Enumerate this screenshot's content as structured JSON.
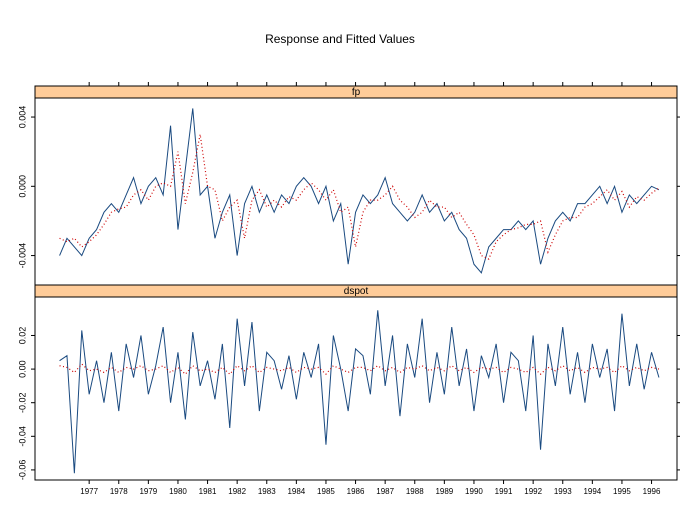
{
  "chart_data": {
    "type": "line",
    "title": "Response and Fitted Values",
    "x": [
      1976.5,
      1976.75,
      1977,
      1977.25,
      1977.5,
      1977.75,
      1978,
      1978.25,
      1978.5,
      1978.75,
      1979,
      1979.25,
      1979.5,
      1979.75,
      1980,
      1980.25,
      1980.5,
      1980.75,
      1981,
      1981.25,
      1981.5,
      1981.75,
      1982,
      1982.25,
      1982.5,
      1982.75,
      1983,
      1983.25,
      1983.5,
      1983.75,
      1984,
      1984.25,
      1984.5,
      1984.75,
      1985,
      1985.25,
      1985.5,
      1985.75,
      1986,
      1986.25,
      1986.5,
      1986.75,
      1987,
      1987.25,
      1987.5,
      1987.75,
      1988,
      1988.25,
      1988.5,
      1988.75,
      1989,
      1989.25,
      1989.5,
      1989.75,
      1990,
      1990.25,
      1990.5,
      1990.75,
      1991,
      1991.25,
      1991.5,
      1991.75,
      1992,
      1992.25,
      1992.5,
      1992.75,
      1993,
      1993.25,
      1993.5,
      1993.75,
      1994,
      1994.25,
      1994.5,
      1994.75,
      1995,
      1995.25,
      1995.5,
      1995.75,
      1996,
      1996.25,
      1996.5,
      1996.75
    ],
    "xlim": [
      1975.67,
      1997.36
    ],
    "xticks": [
      {
        "value": 1977.5,
        "label": "1977"
      },
      {
        "value": 1978.5,
        "label": "1978"
      },
      {
        "value": 1979.5,
        "label": "1979"
      },
      {
        "value": 1980.5,
        "label": "1980"
      },
      {
        "value": 1981.5,
        "label": "1981"
      },
      {
        "value": 1982.5,
        "label": "1982"
      },
      {
        "value": 1983.5,
        "label": "1983"
      },
      {
        "value": 1984.5,
        "label": "1984"
      },
      {
        "value": 1985.5,
        "label": "1985"
      },
      {
        "value": 1986.5,
        "label": "1986"
      },
      {
        "value": 1987.5,
        "label": "1987"
      },
      {
        "value": 1988.5,
        "label": "1988"
      },
      {
        "value": 1989.5,
        "label": "1989"
      },
      {
        "value": 1990.5,
        "label": "1990"
      },
      {
        "value": 1991.5,
        "label": "1991"
      },
      {
        "value": 1992.5,
        "label": "1992"
      },
      {
        "value": 1993.5,
        "label": "1993"
      },
      {
        "value": 1994.5,
        "label": "1994"
      },
      {
        "value": 1995.5,
        "label": "1995"
      },
      {
        "value": 1996.5,
        "label": "1996"
      }
    ],
    "panels": [
      {
        "strip": "fp",
        "ylim": [
          -0.0057,
          0.0051
        ],
        "yticks": [
          -0.004,
          {
            "value": 0,
            "label": "0.000"
          },
          0.004
        ],
        "series": [
          {
            "color": "#1a4a80",
            "style": "solid",
            "values": [
              -0.004,
              -0.003,
              -0.0035,
              -0.004,
              -0.003,
              -0.0025,
              -0.0015,
              -0.001,
              -0.0015,
              -0.0005,
              0.0005,
              -0.001,
              0.0,
              0.0005,
              -0.0005,
              0.0035,
              -0.0025,
              0.001,
              0.0045,
              -0.0005,
              0.0,
              -0.003,
              -0.0015,
              -0.0005,
              -0.004,
              -0.001,
              0.0,
              -0.0015,
              -0.0005,
              -0.0015,
              -0.0005,
              -0.001,
              0.0,
              0.0005,
              0.0,
              -0.001,
              0.0,
              -0.002,
              -0.001,
              -0.0045,
              -0.0015,
              -0.0005,
              -0.001,
              -0.0005,
              0.0005,
              -0.001,
              -0.0015,
              -0.002,
              -0.0015,
              -0.0005,
              -0.0015,
              -0.001,
              -0.002,
              -0.0015,
              -0.0025,
              -0.003,
              -0.0045,
              -0.005,
              -0.0035,
              -0.003,
              -0.0025,
              -0.0025,
              -0.002,
              -0.0025,
              -0.002,
              -0.0045,
              -0.003,
              -0.002,
              -0.0015,
              -0.002,
              -0.001,
              -0.001,
              -0.0005,
              0.0,
              -0.001,
              0.0,
              -0.0015,
              -0.0005,
              -0.001,
              -0.0005,
              0.0,
              -0.0002
            ]
          },
          {
            "color": "#cc0000",
            "style": "dotted",
            "values": [
              -0.003,
              -0.0032,
              -0.003,
              -0.0035,
              -0.0032,
              -0.0028,
              -0.0022,
              -0.0015,
              -0.0013,
              -0.0012,
              -0.0005,
              -0.0002,
              -0.0008,
              0.0,
              0.0002,
              0.0,
              0.002,
              -0.001,
              0.0008,
              0.003,
              0.0,
              -0.0002,
              -0.002,
              -0.0012,
              -0.0008,
              -0.003,
              -0.0008,
              -0.0002,
              -0.0012,
              -0.0008,
              -0.0012,
              -0.0006,
              -0.0008,
              -0.0002,
              0.0002,
              -0.0002,
              -0.0008,
              -0.0002,
              -0.0015,
              -0.0012,
              -0.0035,
              -0.0015,
              -0.0008,
              -0.0008,
              -0.0005,
              0.0,
              -0.0008,
              -0.0012,
              -0.0018,
              -0.0015,
              -0.0008,
              -0.0012,
              -0.0012,
              -0.0018,
              -0.0015,
              -0.0022,
              -0.0028,
              -0.004,
              -0.0042,
              -0.0032,
              -0.0028,
              -0.0025,
              -0.0024,
              -0.0022,
              -0.0022,
              -0.002,
              -0.0038,
              -0.0028,
              -0.002,
              -0.0018,
              -0.0018,
              -0.0012,
              -0.001,
              -0.0006,
              -0.0002,
              -0.0008,
              -0.0003,
              -0.0012,
              -0.0006,
              -0.0008,
              -0.0004,
              -0.0001
            ]
          }
        ]
      },
      {
        "strip": "dspot",
        "ylim": [
          -0.066,
          0.0429
        ],
        "yticks": [
          -0.06,
          -0.04,
          -0.02,
          {
            "value": 0,
            "label": "0.00"
          },
          0.02
        ],
        "series": [
          {
            "color": "#1a4a80",
            "style": "solid",
            "values": [
              0.005,
              0.008,
              -0.062,
              0.023,
              -0.015,
              0.005,
              -0.02,
              0.01,
              -0.025,
              0.015,
              -0.005,
              0.02,
              -0.015,
              0.002,
              0.025,
              -0.02,
              0.01,
              -0.03,
              0.022,
              -0.01,
              0.005,
              -0.018,
              0.015,
              -0.035,
              0.03,
              -0.01,
              0.028,
              -0.025,
              0.01,
              0.005,
              -0.012,
              0.008,
              -0.018,
              0.01,
              -0.005,
              0.015,
              -0.045,
              0.02,
              0.0,
              -0.025,
              0.012,
              0.008,
              -0.015,
              0.035,
              -0.01,
              0.02,
              -0.028,
              0.015,
              -0.005,
              0.03,
              -0.02,
              0.01,
              -0.015,
              0.025,
              -0.01,
              0.012,
              -0.025,
              0.008,
              -0.005,
              0.015,
              -0.02,
              0.01,
              0.005,
              -0.025,
              0.02,
              -0.048,
              0.015,
              -0.01,
              0.025,
              -0.015,
              0.01,
              -0.02,
              0.015,
              -0.005,
              0.012,
              -0.025,
              0.033,
              -0.01,
              0.015,
              -0.012,
              0.01,
              -0.005
            ]
          },
          {
            "color": "#cc0000",
            "style": "dotted",
            "values": [
              0.002,
              0.001,
              -0.002,
              0.003,
              -0.001,
              0.0,
              -0.002,
              0.001,
              -0.002,
              0.001,
              0.0,
              0.002,
              -0.001,
              0.0,
              0.002,
              -0.002,
              0.001,
              -0.003,
              0.002,
              -0.001,
              0.0,
              -0.002,
              0.001,
              -0.003,
              0.002,
              -0.001,
              0.002,
              -0.002,
              0.001,
              0.0,
              -0.001,
              0.001,
              -0.002,
              0.001,
              0.0,
              0.001,
              -0.003,
              0.002,
              0.0,
              -0.002,
              0.001,
              0.001,
              -0.001,
              0.002,
              -0.001,
              0.001,
              -0.002,
              0.001,
              0.0,
              0.002,
              -0.001,
              0.001,
              -0.001,
              0.002,
              -0.001,
              0.001,
              -0.002,
              0.001,
              0.0,
              0.001,
              -0.002,
              0.001,
              0.0,
              -0.002,
              0.001,
              -0.003,
              0.001,
              -0.001,
              0.002,
              -0.001,
              0.001,
              -0.002,
              0.001,
              0.0,
              0.001,
              -0.002,
              0.002,
              -0.001,
              0.001,
              -0.001,
              0.001,
              0.0
            ]
          }
        ]
      }
    ]
  }
}
